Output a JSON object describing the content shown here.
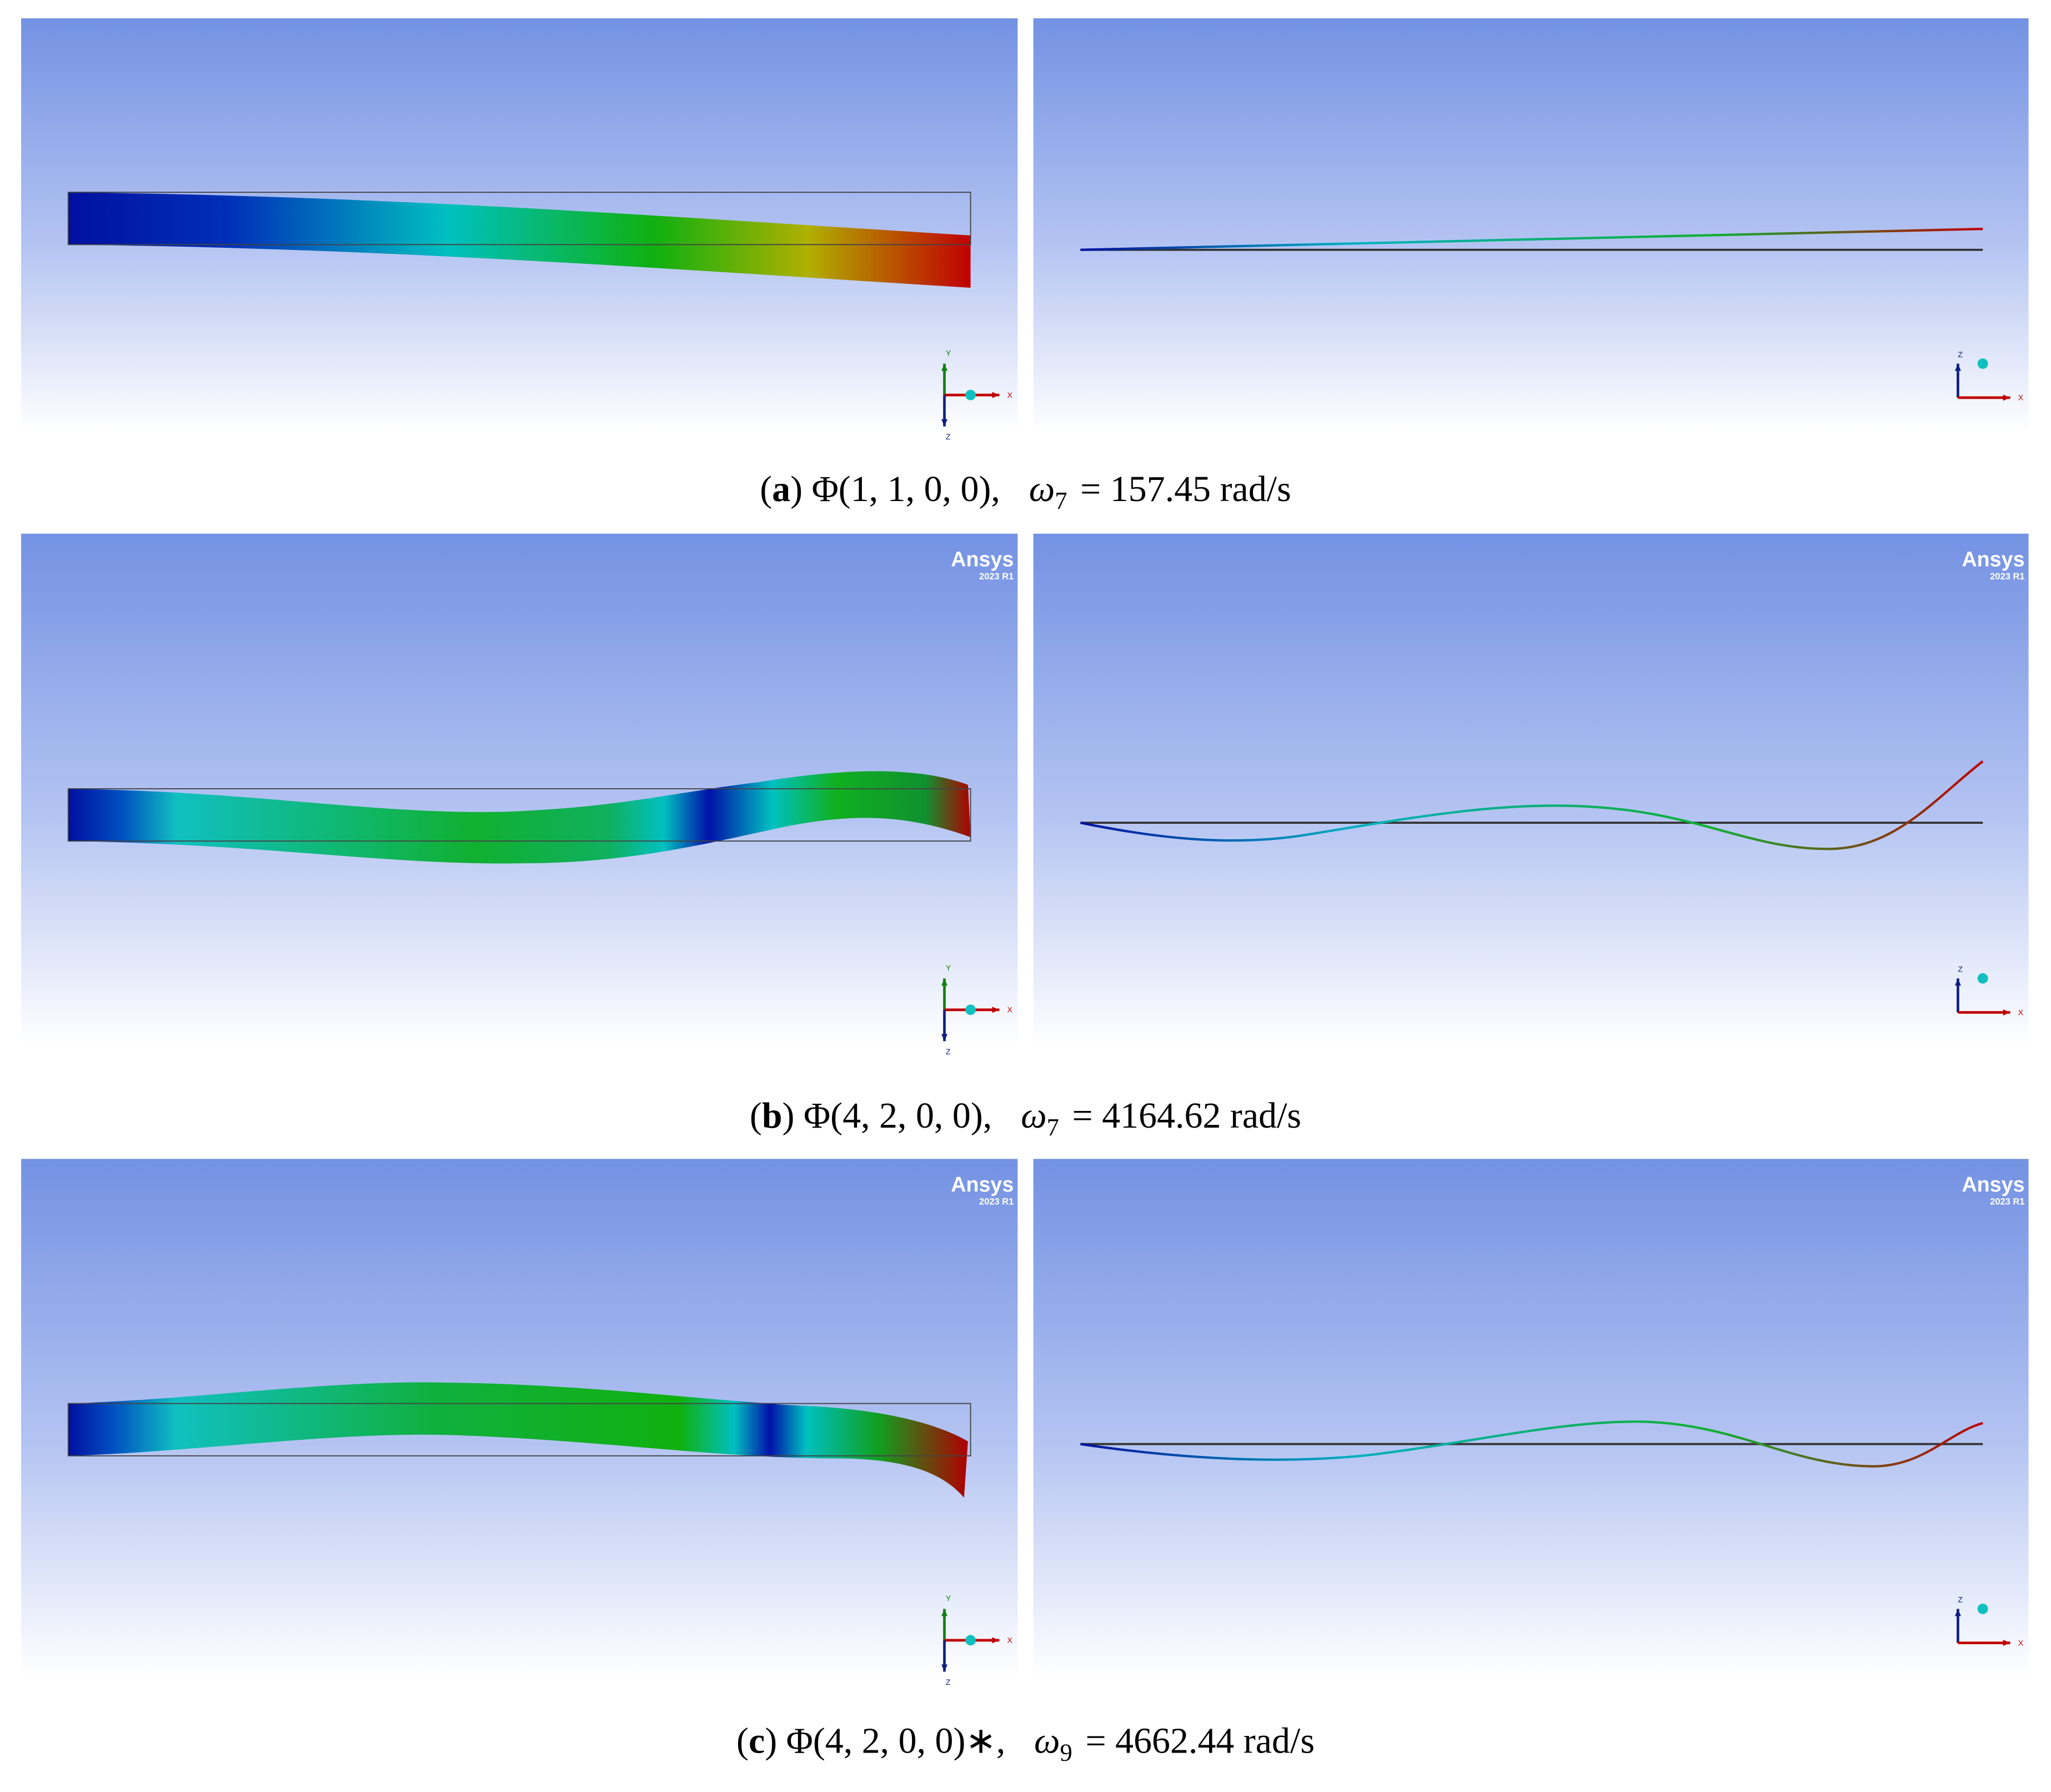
{
  "panels": [
    {
      "label": "a",
      "mode": "Φ(1, 1, 0, 0),",
      "omega": "ω",
      "index": "7",
      "value": "= 157.45 rad/s",
      "views": [
        {
          "triad": [
            "Y",
            "X",
            "Z"
          ]
        },
        {
          "triad": [
            "Z",
            "X"
          ]
        }
      ]
    },
    {
      "label": "b",
      "mode": "Φ(4, 2, 0, 0),",
      "omega": "ω",
      "index": "7",
      "value": "= 4164.62 rad/s",
      "watermark": {
        "brand": "Ansys",
        "version": "2023 R1"
      },
      "views": [
        {
          "triad": [
            "Y",
            "X",
            "Z"
          ]
        },
        {
          "triad": [
            "Z",
            "X"
          ]
        }
      ]
    },
    {
      "label": "c",
      "mode": "Φ(4, 2, 0, 0)∗,",
      "omega": "ω",
      "index": "9",
      "value": "= 4662.44 rad/s",
      "watermark": {
        "brand": "Ansys",
        "version": "2023 R1"
      },
      "views": [
        {
          "triad": [
            "Y",
            "X",
            "Z"
          ]
        },
        {
          "triad": [
            "Z",
            "X"
          ]
        }
      ]
    }
  ]
}
